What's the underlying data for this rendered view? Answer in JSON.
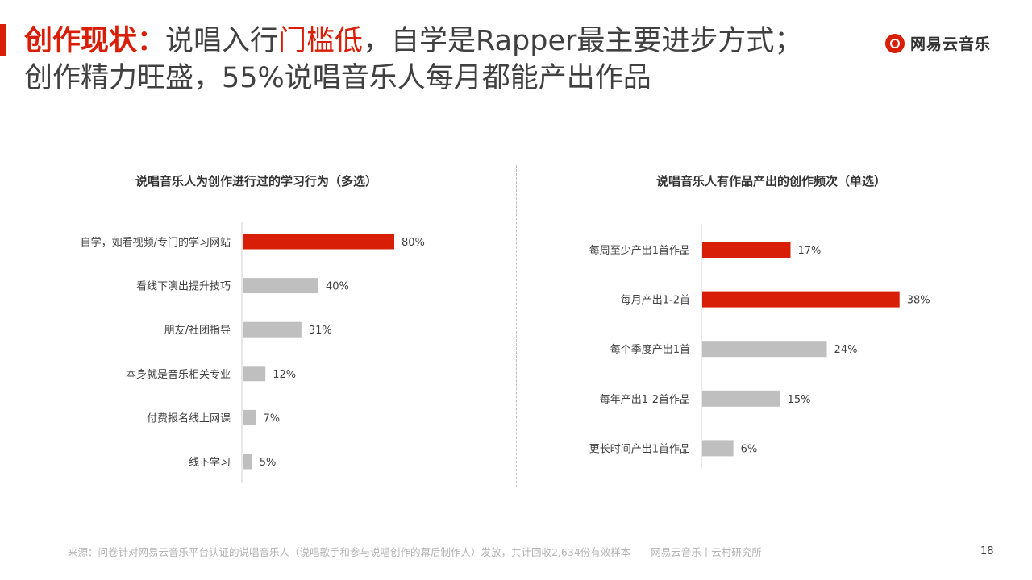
{
  "header": {
    "title_bold": "创作现状：",
    "title_part1": "说唱入行",
    "title_highlight": "门槛低",
    "title_part2": "，自学是Rapper最主要进步方式；",
    "title_line2": "创作精力旺盛，55%说唱音乐人每月都能产出作品"
  },
  "logo": {
    "text": "网易云音乐"
  },
  "footer": {
    "source": "来源：问卷针对网易云音乐平台认证的说唱音乐人（说唱歌手和参与说唱创作的幕后制作人）发放，共计回收2,634份有效样本——网易云音乐丨云村研究所",
    "page": "18"
  },
  "colors": {
    "accent": "#d81e06",
    "gray": "#bfbfbf",
    "text": "#404040"
  },
  "chart_data": [
    {
      "type": "bar",
      "orientation": "horizontal",
      "title": "说唱音乐人为创作进行过的学习行为（多选）",
      "categories": [
        "自学，如看视频/专门的学习网站",
        "看线下演出提升技巧",
        "朋友/社团指导",
        "本身就是音乐相关专业",
        "付费报名线上网课",
        "线下学习"
      ],
      "values": [
        80,
        40,
        31,
        12,
        7,
        5
      ],
      "labels": [
        "80%",
        "40%",
        "31%",
        "12%",
        "7%",
        "5%"
      ],
      "highlight": [
        true,
        false,
        false,
        false,
        false,
        false
      ],
      "unit": "%",
      "xlim": [
        0,
        100
      ]
    },
    {
      "type": "bar",
      "orientation": "horizontal",
      "title": "说唱音乐人有作品产出的创作频次（单选）",
      "categories": [
        "每周至少产出1首作品",
        "每月产出1-2首",
        "每个季度产出1首",
        "每年产出1-2首作品",
        "更长时间产出1首作品"
      ],
      "values": [
        17,
        38,
        24,
        15,
        6
      ],
      "labels": [
        "17%",
        "38%",
        "24%",
        "15%",
        "6%"
      ],
      "highlight": [
        true,
        true,
        false,
        false,
        false
      ],
      "unit": "%",
      "xlim": [
        0,
        50
      ]
    }
  ]
}
